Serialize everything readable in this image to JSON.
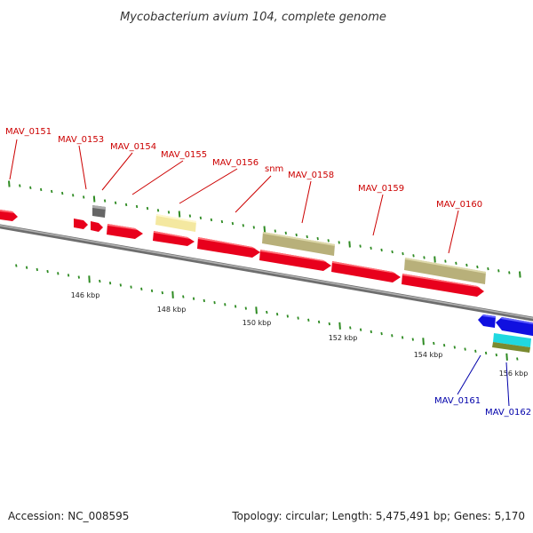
{
  "title": "Mycobacterium avium 104, complete genome",
  "footer": {
    "accession": "Accession: NC_008595",
    "topology": "Topology: circular; Length: 5,475,491 bp; Genes: 5,170"
  },
  "colors": {
    "forward_gene": "#e8001c",
    "reverse_gene": "#1010e0",
    "forward_label": "#cc0000",
    "reverse_label": "#0000aa",
    "backbone": "#8c8c8c",
    "tick": "#2e8b22",
    "khaki": "#b8b07a",
    "pale": "#f4e8a0",
    "gray": "#666666",
    "cyan": "#20d8e0",
    "olive": "#7a8a30"
  },
  "diagram": {
    "axis_ticks": [
      "146 kbp",
      "148 kbp",
      "150 kbp",
      "152 kbp",
      "154 kbp",
      "156 kbp"
    ],
    "gene_labels": [
      {
        "text": "MAV_0151",
        "strand": "forward"
      },
      {
        "text": "MAV_0153",
        "strand": "forward"
      },
      {
        "text": "MAV_0154",
        "strand": "forward"
      },
      {
        "text": "MAV_0155",
        "strand": "forward"
      },
      {
        "text": "MAV_0156",
        "strand": "forward"
      },
      {
        "text": "snm",
        "strand": "forward"
      },
      {
        "text": "MAV_0158",
        "strand": "forward"
      },
      {
        "text": "MAV_0159",
        "strand": "forward"
      },
      {
        "text": "MAV_0160",
        "strand": "forward"
      },
      {
        "text": "MAV_0161",
        "strand": "reverse"
      },
      {
        "text": "MAV_0162",
        "strand": "reverse"
      }
    ]
  }
}
